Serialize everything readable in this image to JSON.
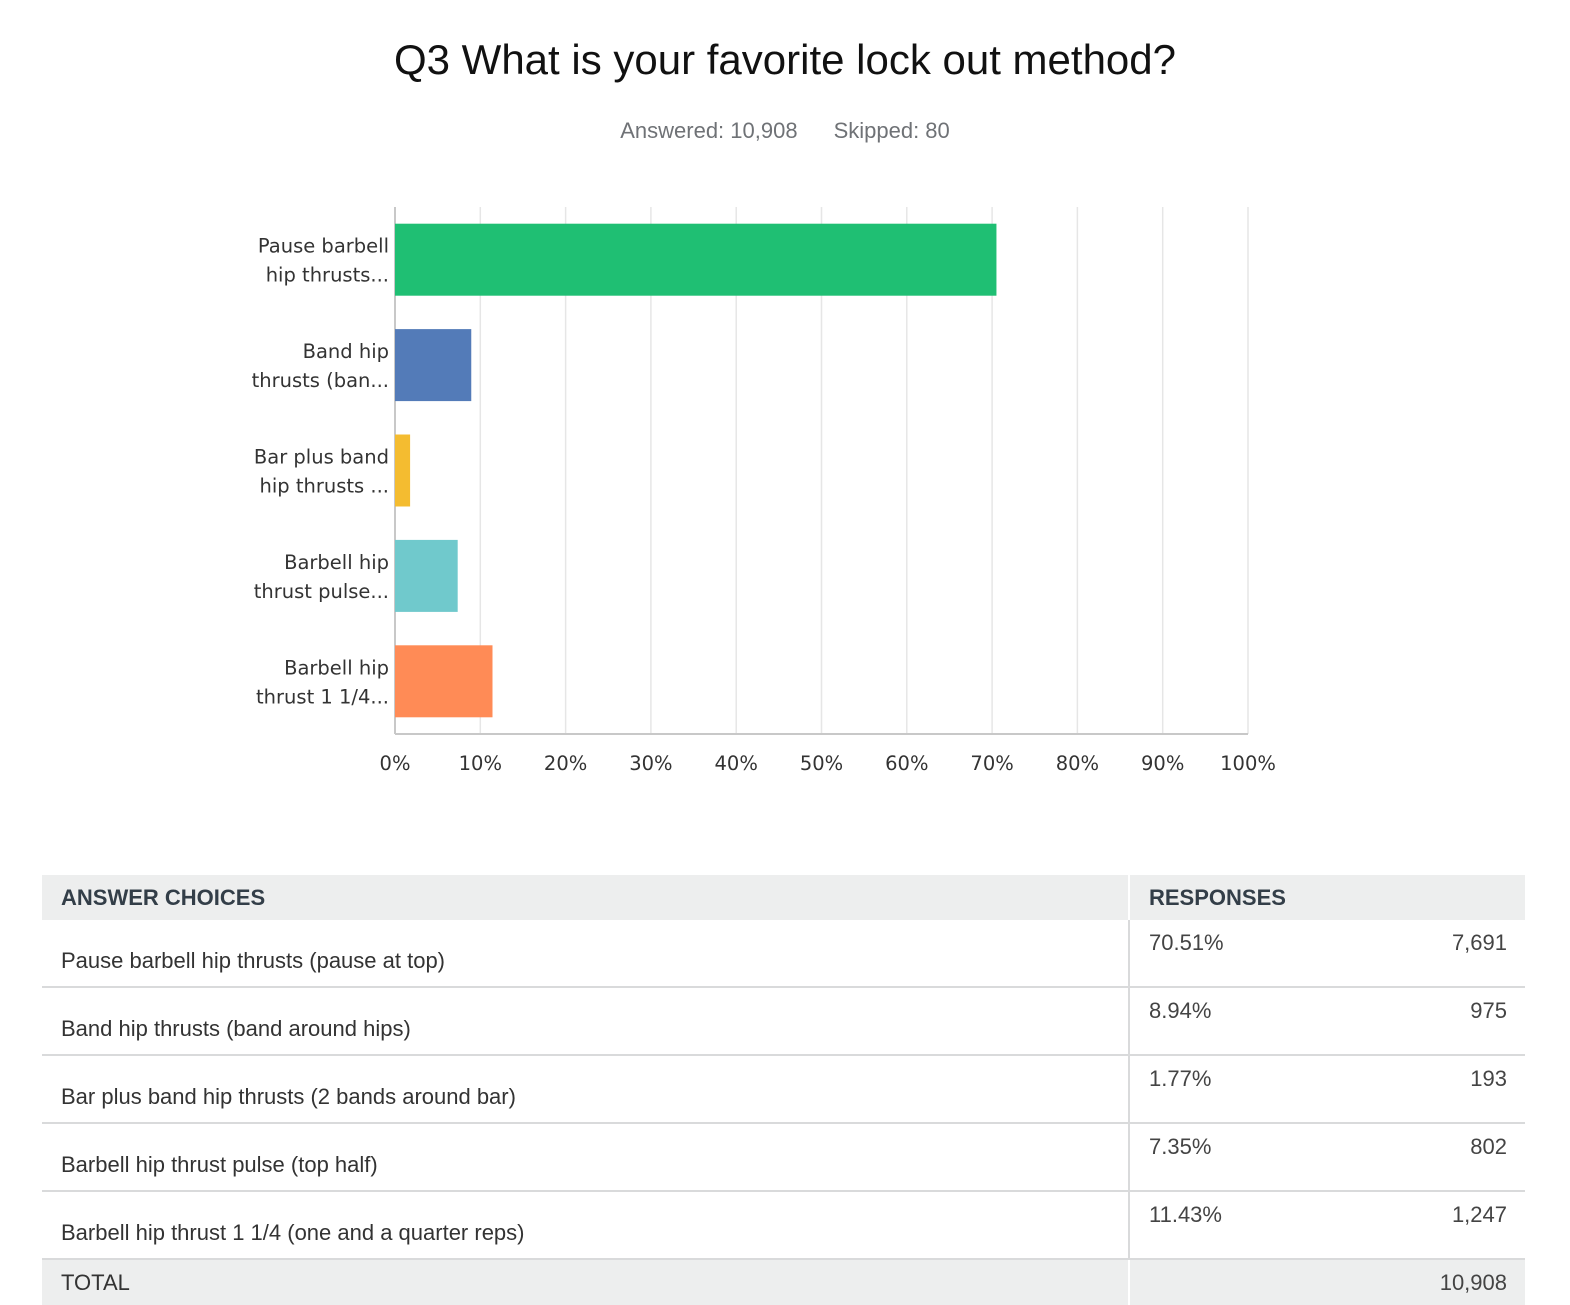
{
  "question": {
    "title": "Q3 What is your favorite lock out method?",
    "answered": "Answered: 10,908",
    "skipped": "Skipped: 80"
  },
  "chart_data": {
    "type": "bar",
    "orientation": "horizontal",
    "categories": [
      [
        "Pause barbell",
        "hip thrusts..."
      ],
      [
        "Band hip",
        "thrusts (ban..."
      ],
      [
        "Bar plus band",
        "hip thrusts ..."
      ],
      [
        "Barbell hip",
        "thrust pulse..."
      ],
      [
        "Barbell hip",
        "thrust 1 1/4..."
      ]
    ],
    "values": [
      70.51,
      8.94,
      1.77,
      7.35,
      11.43
    ],
    "colors": [
      "#1fbf73",
      "#537bb8",
      "#f4bc30",
      "#70c9cc",
      "#ff8b56"
    ],
    "xlim": [
      0,
      100
    ],
    "x_ticks": [
      "0%",
      "10%",
      "20%",
      "30%",
      "40%",
      "50%",
      "60%",
      "70%",
      "80%",
      "90%",
      "100%"
    ],
    "grid": true,
    "gridline_color": "#e6e6e6",
    "axis_color": "#c8c8c8"
  },
  "table": {
    "headers": {
      "choices": "ANSWER CHOICES",
      "responses": "RESPONSES"
    },
    "rows": [
      {
        "label": "Pause barbell hip thrusts (pause at top)",
        "pct": "70.51%",
        "count": "7,691"
      },
      {
        "label": "Band hip thrusts (band around hips)",
        "pct": "8.94%",
        "count": "975"
      },
      {
        "label": "Bar plus band hip thrusts (2 bands around bar)",
        "pct": "1.77%",
        "count": "193"
      },
      {
        "label": "Barbell hip thrust pulse (top half)",
        "pct": "7.35%",
        "count": "802"
      },
      {
        "label": "Barbell hip thrust 1 1/4 (one and a quarter reps)",
        "pct": "11.43%",
        "count": "1,247"
      }
    ],
    "total": {
      "label": "TOTAL",
      "count": "10,908"
    }
  }
}
